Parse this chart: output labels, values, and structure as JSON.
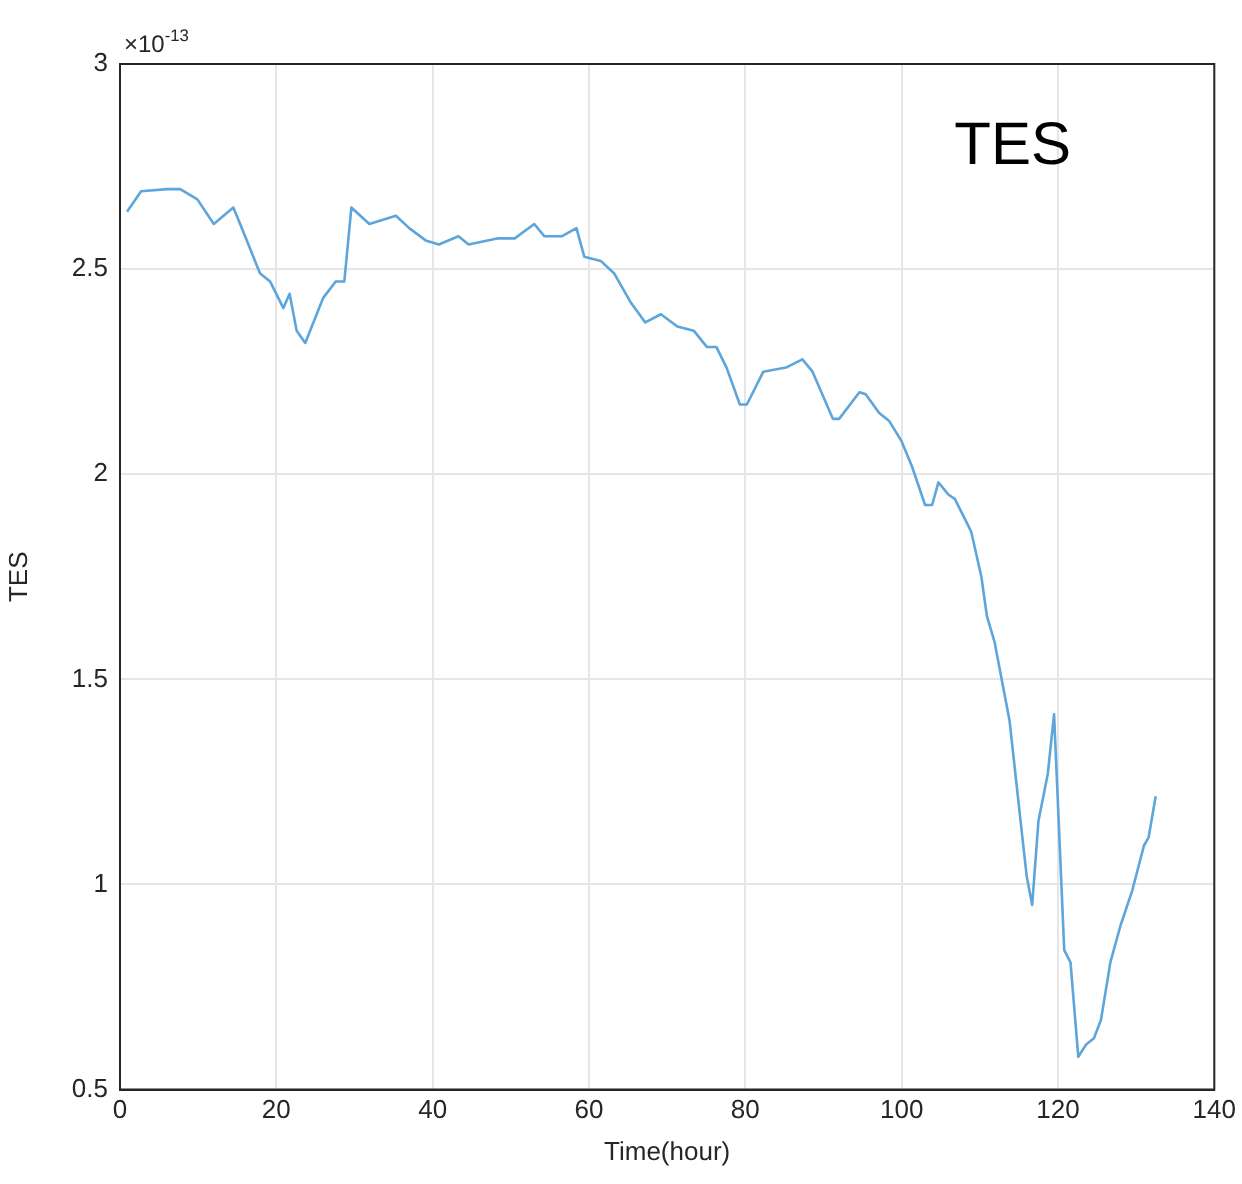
{
  "chart_data": {
    "type": "line",
    "xlabel": "Time(hour)",
    "ylabel": "TES",
    "annotations": [
      "×10$^{-13}$",
      "TES"
    ],
    "xlim": [
      0,
      140
    ],
    "xticks": [
      0,
      20,
      40,
      60,
      80,
      100,
      120,
      140
    ],
    "ylim": [
      0.5,
      3
    ],
    "yticks": [
      0.5,
      1,
      1.5,
      2,
      2.5,
      3
    ],
    "grid": true,
    "marker": "none",
    "line_style": "solid",
    "series": [
      {
        "color": "#5da5da",
        "x": [
          0.9,
          2.7,
          6.0,
          7.7,
          9.9,
          12.0,
          14.5,
          15.8,
          17.9,
          19.2,
          20.9,
          21.7,
          22.6,
          23.7,
          26.0,
          27.6,
          28.7,
          29.6,
          31.9,
          35.3,
          37.0,
          39.1,
          40.8,
          43.3,
          44.6,
          48.4,
          50.5,
          53.0,
          54.3,
          56.5,
          58.4,
          59.4,
          61.5,
          63.2,
          65.3,
          67.2,
          69.2,
          71.3,
          73.4,
          75.1,
          76.3,
          77.6,
          79.3,
          80.2,
          82.3,
          85.2,
          87.3,
          88.6,
          91.2,
          92.0,
          94.6,
          95.4,
          97.1,
          98.4,
          100.0,
          101.3,
          103.0,
          103.9,
          104.7,
          106.0,
          106.8,
          108.9,
          110.2,
          110.9,
          111.9,
          113.8,
          115.3,
          116.0,
          116.7,
          117.5,
          118.7,
          119.5,
          120.8,
          121.6,
          122.6,
          123.6,
          124.6,
          125.5,
          126.7,
          128.0,
          129.5,
          131.0,
          131.6,
          132.5
        ],
        "values": [
          2.64,
          2.69,
          2.695,
          2.695,
          2.67,
          2.61,
          2.65,
          2.59,
          2.49,
          2.47,
          2.405,
          2.44,
          2.35,
          2.32,
          2.43,
          2.47,
          2.47,
          2.65,
          2.61,
          2.63,
          2.6,
          2.57,
          2.56,
          2.58,
          2.56,
          2.575,
          2.575,
          2.61,
          2.58,
          2.58,
          2.6,
          2.53,
          2.52,
          2.49,
          2.42,
          2.37,
          2.39,
          2.36,
          2.35,
          2.31,
          2.31,
          2.26,
          2.17,
          2.17,
          2.25,
          2.26,
          2.28,
          2.25,
          2.135,
          2.135,
          2.2,
          2.195,
          2.15,
          2.13,
          2.08,
          2.02,
          1.925,
          1.925,
          1.98,
          1.95,
          1.94,
          1.86,
          1.75,
          1.655,
          1.59,
          1.4,
          1.14,
          1.02,
          0.95,
          1.155,
          1.27,
          1.415,
          0.84,
          0.81,
          0.58,
          0.61,
          0.625,
          0.67,
          0.81,
          0.9,
          0.985,
          1.095,
          1.115,
          1.215
        ]
      }
    ]
  }
}
